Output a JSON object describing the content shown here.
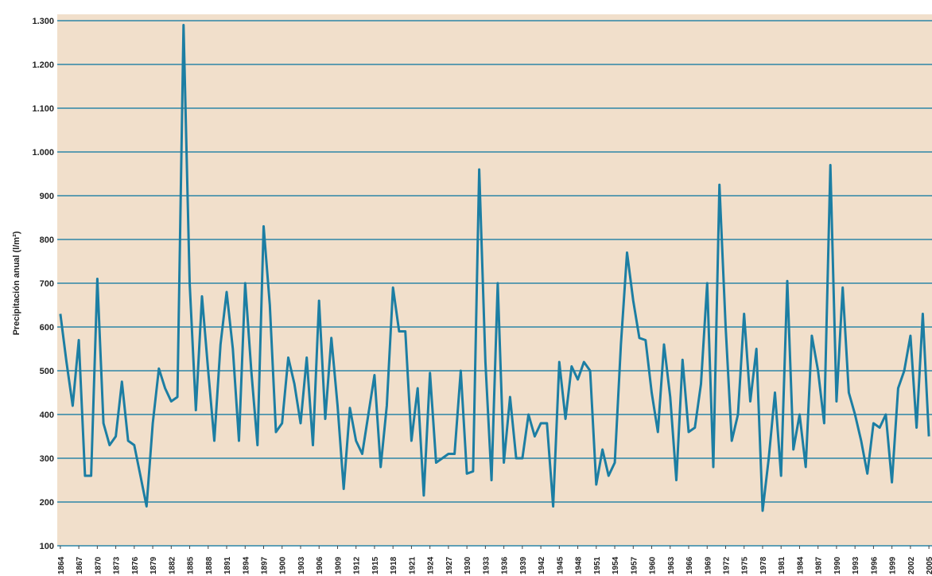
{
  "chart_data": {
    "type": "line",
    "ylabel": "Precipitación anual (l/m²)",
    "x": [
      1864,
      1865,
      1866,
      1867,
      1868,
      1869,
      1870,
      1871,
      1872,
      1873,
      1874,
      1875,
      1876,
      1877,
      1878,
      1879,
      1880,
      1881,
      1882,
      1883,
      1884,
      1885,
      1886,
      1887,
      1888,
      1889,
      1890,
      1891,
      1892,
      1893,
      1894,
      1895,
      1896,
      1897,
      1898,
      1899,
      1900,
      1901,
      1902,
      1903,
      1904,
      1905,
      1906,
      1907,
      1908,
      1909,
      1910,
      1911,
      1912,
      1913,
      1914,
      1915,
      1916,
      1917,
      1918,
      1919,
      1920,
      1921,
      1922,
      1923,
      1924,
      1925,
      1926,
      1927,
      1928,
      1929,
      1930,
      1931,
      1932,
      1933,
      1934,
      1935,
      1936,
      1937,
      1938,
      1939,
      1940,
      1941,
      1942,
      1943,
      1944,
      1945,
      1946,
      1947,
      1948,
      1949,
      1950,
      1951,
      1952,
      1953,
      1954,
      1955,
      1956,
      1957,
      1958,
      1959,
      1960,
      1961,
      1962,
      1963,
      1964,
      1965,
      1966,
      1967,
      1968,
      1969,
      1970,
      1971,
      1972,
      1973,
      1974,
      1975,
      1976,
      1977,
      1978,
      1979,
      1980,
      1981,
      1982,
      1983,
      1984,
      1985,
      1986,
      1987,
      1988,
      1989,
      1990,
      1991,
      1992,
      1993,
      1994,
      1995,
      1996,
      1997,
      1998,
      1999,
      2000,
      2001,
      2002,
      2003,
      2004,
      2005
    ],
    "values": [
      630,
      520,
      420,
      570,
      260,
      260,
      710,
      380,
      330,
      350,
      475,
      340,
      330,
      260,
      190,
      380,
      505,
      460,
      430,
      440,
      1290,
      700,
      410,
      670,
      500,
      340,
      560,
      680,
      550,
      340,
      700,
      500,
      330,
      830,
      650,
      360,
      380,
      530,
      470,
      380,
      530,
      330,
      660,
      390,
      575,
      420,
      230,
      415,
      340,
      310,
      400,
      490,
      280,
      420,
      690,
      590,
      590,
      340,
      460,
      215,
      495,
      290,
      300,
      310,
      310,
      500,
      265,
      270,
      960,
      520,
      250,
      700,
      290,
      440,
      300,
      300,
      400,
      350,
      380,
      380,
      190,
      520,
      390,
      510,
      480,
      520,
      500,
      240,
      320,
      260,
      290,
      560,
      770,
      660,
      575,
      570,
      450,
      360,
      560,
      440,
      250,
      525,
      360,
      370,
      470,
      700,
      280,
      925,
      600,
      340,
      400,
      630,
      430,
      550,
      180,
      300,
      450,
      260,
      705,
      320,
      400,
      280,
      580,
      500,
      380,
      970,
      430,
      690,
      450,
      400,
      340,
      265,
      380,
      370,
      400,
      245,
      460,
      500,
      580,
      370,
      630,
      350
    ],
    "color": "#1c7ea3",
    "xlim": [
      1863.5,
      2005.5
    ],
    "xticks": [
      1864,
      1867,
      1870,
      1873,
      1876,
      1879,
      1882,
      1885,
      1888,
      1891,
      1894,
      1897,
      1900,
      1903,
      1906,
      1909,
      1912,
      1915,
      1918,
      1921,
      1924,
      1927,
      1930,
      1933,
      1936,
      1939,
      1942,
      1945,
      1948,
      1951,
      1954,
      1957,
      1960,
      1963,
      1966,
      1969,
      1972,
      1975,
      1978,
      1981,
      1984,
      1987,
      1990,
      1993,
      1996,
      1999,
      2002,
      2005
    ],
    "ylim": [
      100,
      1300
    ],
    "yticks": [
      100,
      200,
      300,
      400,
      500,
      600,
      700,
      800,
      900,
      {
        "value": 1000,
        "label": "1.000"
      },
      {
        "value": 1100,
        "label": "1.100"
      },
      {
        "value": 1200,
        "label": "1.200"
      },
      {
        "value": 1300,
        "label": "1.300"
      }
    ],
    "grid": true
  }
}
